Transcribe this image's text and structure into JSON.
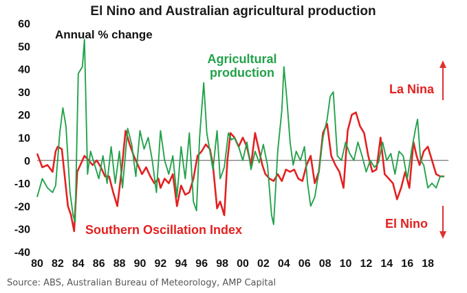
{
  "chart_data": {
    "type": "line",
    "title": "El Nino and Australian agricultural production",
    "subtitle": "Annual % change",
    "source": "Source: ABS, Australian Bureau of Meteorology, AMP Capital",
    "ylim": [
      -40,
      60
    ],
    "yticks": [
      60,
      50,
      40,
      30,
      20,
      10,
      0,
      -10,
      -20,
      -30,
      -40
    ],
    "xlim": [
      1980,
      2020
    ],
    "xticks": [
      "80",
      "82",
      "84",
      "86",
      "88",
      "90",
      "92",
      "94",
      "96",
      "98",
      "00",
      "02",
      "04",
      "06",
      "08",
      "10",
      "12",
      "14",
      "16",
      "18"
    ],
    "grid": false,
    "colors": {
      "agri": "#22a24a",
      "soi": "#e32020",
      "axis": "#555555",
      "arrow": "#e03030"
    },
    "annotations": {
      "la_nina": "La Nina",
      "el_nino": "El Nino"
    },
    "series": [
      {
        "name": "Agricultural production",
        "label_lines": [
          "Agricultural",
          "production"
        ],
        "points": [
          [
            1980,
            -16
          ],
          [
            1980.5,
            -8
          ],
          [
            1981,
            -12
          ],
          [
            1981.5,
            -14
          ],
          [
            1981.8,
            -11
          ],
          [
            1982.2,
            12
          ],
          [
            1982.5,
            23
          ],
          [
            1982.8,
            15
          ],
          [
            1983.2,
            -14
          ],
          [
            1983.5,
            -24
          ],
          [
            1983.7,
            -27
          ],
          [
            1984.0,
            38
          ],
          [
            1984.4,
            41
          ],
          [
            1984.6,
            53
          ],
          [
            1984.9,
            -6
          ],
          [
            1985.2,
            4
          ],
          [
            1985.6,
            -2
          ],
          [
            1986.0,
            -8
          ],
          [
            1986.4,
            2
          ],
          [
            1986.8,
            -10
          ],
          [
            1987.2,
            6
          ],
          [
            1987.6,
            -10
          ],
          [
            1988.0,
            4
          ],
          [
            1988.3,
            -12
          ],
          [
            1988.8,
            14
          ],
          [
            1989.2,
            7
          ],
          [
            1989.6,
            -7
          ],
          [
            1990.0,
            13
          ],
          [
            1990.4,
            5
          ],
          [
            1990.8,
            10
          ],
          [
            1991.2,
            0
          ],
          [
            1991.6,
            -14
          ],
          [
            1992.0,
            13
          ],
          [
            1992.4,
            0
          ],
          [
            1992.8,
            -6
          ],
          [
            1993.2,
            2
          ],
          [
            1993.6,
            -16
          ],
          [
            1994.0,
            6
          ],
          [
            1994.4,
            -8
          ],
          [
            1994.8,
            12
          ],
          [
            1995.2,
            -18
          ],
          [
            1995.5,
            -22
          ],
          [
            1995.8,
            10
          ],
          [
            1996.2,
            34
          ],
          [
            1996.5,
            12
          ],
          [
            1996.8,
            4
          ],
          [
            1997.1,
            -4
          ],
          [
            1997.5,
            13
          ],
          [
            1997.8,
            -8
          ],
          [
            1998.2,
            -3
          ],
          [
            1998.6,
            12
          ],
          [
            1998.9,
            9
          ],
          [
            1999.2,
            10
          ],
          [
            1999.6,
            6
          ],
          [
            2000.0,
            0
          ],
          [
            2000.4,
            8
          ],
          [
            2000.8,
            -4
          ],
          [
            2001.2,
            4
          ],
          [
            2001.6,
            -1
          ],
          [
            2002.0,
            7
          ],
          [
            2002.4,
            -2
          ],
          [
            2002.8,
            -24
          ],
          [
            2003.0,
            -28
          ],
          [
            2003.4,
            4
          ],
          [
            2003.8,
            22
          ],
          [
            2004.0,
            41
          ],
          [
            2004.3,
            26
          ],
          [
            2004.6,
            8
          ],
          [
            2004.9,
            -2
          ],
          [
            2005.2,
            4
          ],
          [
            2005.6,
            0
          ],
          [
            2006.0,
            6
          ],
          [
            2006.3,
            -10
          ],
          [
            2006.6,
            -20
          ],
          [
            2007.0,
            -16
          ],
          [
            2007.4,
            -5
          ],
          [
            2007.8,
            10
          ],
          [
            2008.2,
            18
          ],
          [
            2008.5,
            28
          ],
          [
            2008.8,
            30
          ],
          [
            2009.2,
            2
          ],
          [
            2009.6,
            0
          ],
          [
            2010.0,
            8
          ],
          [
            2010.4,
            3
          ],
          [
            2010.8,
            0
          ],
          [
            2011.2,
            8
          ],
          [
            2011.6,
            2
          ],
          [
            2012.0,
            -5
          ],
          [
            2012.4,
            0
          ],
          [
            2012.8,
            -3
          ],
          [
            2013.2,
            -1
          ],
          [
            2013.6,
            8
          ],
          [
            2014.0,
            0
          ],
          [
            2014.4,
            3
          ],
          [
            2014.8,
            -6
          ],
          [
            2015.2,
            4
          ],
          [
            2015.6,
            2
          ],
          [
            2016.0,
            -8
          ],
          [
            2016.4,
            4
          ],
          [
            2016.8,
            14
          ],
          [
            2017.0,
            18
          ],
          [
            2017.3,
            0
          ],
          [
            2017.6,
            -2
          ],
          [
            2018.0,
            -12
          ],
          [
            2018.4,
            -10
          ],
          [
            2018.8,
            -12
          ],
          [
            2019.2,
            -7
          ],
          [
            2019.6,
            -7
          ]
        ]
      },
      {
        "name": "Southern Oscillation Index",
        "points": [
          [
            1980,
            3
          ],
          [
            1980.5,
            -3
          ],
          [
            1981.0,
            -2
          ],
          [
            1981.5,
            -5
          ],
          [
            1981.8,
            4
          ],
          [
            1982.0,
            6
          ],
          [
            1982.4,
            5
          ],
          [
            1982.8,
            -12
          ],
          [
            1983.0,
            -20
          ],
          [
            1983.3,
            -24
          ],
          [
            1983.6,
            -31
          ],
          [
            1983.9,
            -5
          ],
          [
            1984.3,
            -1
          ],
          [
            1984.6,
            2
          ],
          [
            1985.0,
            0
          ],
          [
            1985.4,
            -2
          ],
          [
            1985.8,
            0
          ],
          [
            1986.2,
            -3
          ],
          [
            1986.6,
            -7
          ],
          [
            1987.0,
            -7
          ],
          [
            1987.4,
            -14
          ],
          [
            1987.8,
            -20
          ],
          [
            1988.2,
            -5
          ],
          [
            1988.6,
            13
          ],
          [
            1989.0,
            7
          ],
          [
            1989.4,
            2
          ],
          [
            1989.8,
            -2
          ],
          [
            1990.2,
            -6
          ],
          [
            1990.6,
            -3
          ],
          [
            1991.0,
            -7
          ],
          [
            1991.4,
            -10
          ],
          [
            1991.8,
            -8
          ],
          [
            1992.0,
            -12
          ],
          [
            1992.4,
            -8
          ],
          [
            1992.8,
            -10
          ],
          [
            1993.2,
            -6
          ],
          [
            1993.6,
            -20
          ],
          [
            1994.0,
            -11
          ],
          [
            1994.4,
            -15
          ],
          [
            1994.8,
            -14
          ],
          [
            1995.2,
            -8
          ],
          [
            1995.6,
            2
          ],
          [
            1996.0,
            4
          ],
          [
            1996.4,
            7
          ],
          [
            1996.8,
            5
          ],
          [
            1997.1,
            -2
          ],
          [
            1997.5,
            -21
          ],
          [
            1997.8,
            -18
          ],
          [
            1998.2,
            -24
          ],
          [
            1998.5,
            0
          ],
          [
            1998.8,
            12
          ],
          [
            1999.2,
            10
          ],
          [
            1999.6,
            6
          ],
          [
            2000.0,
            10
          ],
          [
            2000.4,
            6
          ],
          [
            2000.8,
            -2
          ],
          [
            2001.2,
            12
          ],
          [
            2001.6,
            4
          ],
          [
            2001.9,
            -2
          ],
          [
            2002.2,
            -6
          ],
          [
            2002.6,
            -8
          ],
          [
            2003.0,
            -9
          ],
          [
            2003.4,
            -6
          ],
          [
            2003.8,
            -9
          ],
          [
            2004.2,
            -4
          ],
          [
            2004.6,
            -5
          ],
          [
            2005.0,
            -4
          ],
          [
            2005.4,
            -8
          ],
          [
            2005.8,
            -9
          ],
          [
            2006.2,
            -2
          ],
          [
            2006.6,
            2
          ],
          [
            2007.0,
            -10
          ],
          [
            2007.4,
            -5
          ],
          [
            2007.8,
            12
          ],
          [
            2008.2,
            16
          ],
          [
            2008.6,
            2
          ],
          [
            2009.0,
            -2
          ],
          [
            2009.4,
            -5
          ],
          [
            2009.8,
            -12
          ],
          [
            2010.2,
            13
          ],
          [
            2010.6,
            20
          ],
          [
            2011.0,
            21
          ],
          [
            2011.4,
            15
          ],
          [
            2011.8,
            12
          ],
          [
            2012.2,
            2
          ],
          [
            2012.6,
            -5
          ],
          [
            2013.0,
            -4
          ],
          [
            2013.4,
            10
          ],
          [
            2013.8,
            -6
          ],
          [
            2014.2,
            -8
          ],
          [
            2014.6,
            -10
          ],
          [
            2015.0,
            -17
          ],
          [
            2015.4,
            -12
          ],
          [
            2015.8,
            -5
          ],
          [
            2016.2,
            -12
          ],
          [
            2016.6,
            8
          ],
          [
            2016.9,
            2
          ],
          [
            2017.2,
            -2
          ],
          [
            2017.6,
            4
          ],
          [
            2018.0,
            6
          ],
          [
            2018.4,
            0
          ],
          [
            2018.8,
            -6
          ],
          [
            2019.2,
            -7
          ],
          [
            2019.6,
            -7
          ]
        ]
      }
    ]
  }
}
